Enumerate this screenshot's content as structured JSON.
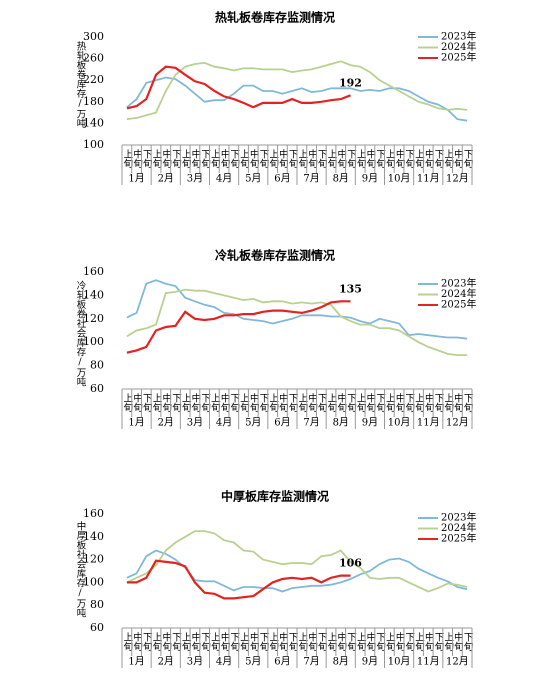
{
  "chart_data": [
    {
      "type": "line",
      "title": "热轧板卷库存监测情况",
      "y_label": "热轧板卷库存/万吨",
      "categories": [
        "上旬",
        "中旬",
        "下旬",
        "上旬",
        "中旬",
        "下旬",
        "上旬",
        "中旬",
        "下旬",
        "上旬",
        "中旬",
        "下旬",
        "上旬",
        "中旬",
        "下旬",
        "上旬",
        "中旬",
        "下旬",
        "上旬",
        "中旬",
        "下旬",
        "上旬",
        "中旬",
        "下旬",
        "上旬",
        "中旬",
        "下旬",
        "上旬",
        "中旬",
        "下旬",
        "上旬",
        "中旬",
        "下旬",
        "上旬",
        "中旬",
        "下旬"
      ],
      "months": [
        "1月",
        "2月",
        "3月",
        "4月",
        "5月",
        "6月",
        "7月",
        "8月",
        "9月",
        "10月",
        "11月",
        "12月"
      ],
      "ylim": [
        100,
        300
      ],
      "yticks": [
        100,
        140,
        180,
        220,
        260,
        300
      ],
      "series": [
        {
          "name": "2023年",
          "color": "#80b9d8",
          "values": [
            170,
            185,
            215,
            220,
            225,
            222,
            210,
            195,
            180,
            183,
            183,
            195,
            210,
            210,
            200,
            200,
            195,
            200,
            205,
            198,
            200,
            205,
            205,
            205,
            200,
            202,
            200,
            205,
            205,
            200,
            190,
            180,
            175,
            165,
            148,
            145
          ]
        },
        {
          "name": "2024年",
          "color": "#b8d190",
          "values": [
            148,
            150,
            155,
            160,
            200,
            230,
            245,
            250,
            252,
            245,
            242,
            238,
            242,
            242,
            240,
            240,
            240,
            235,
            238,
            240,
            245,
            250,
            255,
            248,
            245,
            235,
            220,
            210,
            200,
            190,
            180,
            175,
            168,
            165,
            167,
            165
          ]
        },
        {
          "name": "2025年",
          "color": "#e52222",
          "data_label": "last",
          "values": [
            168,
            172,
            185,
            230,
            245,
            243,
            230,
            218,
            213,
            200,
            190,
            185,
            178,
            170,
            178,
            178,
            178,
            185,
            178,
            178,
            180,
            183,
            185,
            192,
            null,
            null,
            null,
            null,
            null,
            null,
            null,
            null,
            null,
            null,
            null,
            null
          ]
        }
      ]
    },
    {
      "type": "line",
      "title": "冷轧板卷库存监测情况",
      "y_label": "冷轧板卷社会库存/万吨",
      "categories": [
        "上旬",
        "中旬",
        "下旬",
        "上旬",
        "中旬",
        "下旬",
        "上旬",
        "中旬",
        "下旬",
        "上旬",
        "中旬",
        "下旬",
        "上旬",
        "中旬",
        "下旬",
        "上旬",
        "中旬",
        "下旬",
        "上旬",
        "中旬",
        "下旬",
        "上旬",
        "中旬",
        "下旬",
        "上旬",
        "中旬",
        "下旬",
        "上旬",
        "中旬",
        "下旬",
        "上旬",
        "中旬",
        "下旬",
        "上旬",
        "中旬",
        "下旬"
      ],
      "months": [
        "1月",
        "2月",
        "3月",
        "4月",
        "5月",
        "6月",
        "7月",
        "8月",
        "9月",
        "10月",
        "11月",
        "12月"
      ],
      "ylim": [
        60,
        160
      ],
      "yticks": [
        60,
        80,
        100,
        120,
        140,
        160
      ],
      "series": [
        {
          "name": "2023年",
          "color": "#80b9d8",
          "values": [
            121,
            125,
            150,
            153,
            150,
            148,
            138,
            135,
            132,
            130,
            125,
            124,
            120,
            119,
            118,
            116,
            118,
            120,
            123,
            123,
            123,
            122,
            122,
            121,
            118,
            116,
            120,
            118,
            116,
            106,
            107,
            106,
            105,
            104,
            104,
            103
          ]
        },
        {
          "name": "2024年",
          "color": "#b8d190",
          "values": [
            105,
            110,
            112,
            115,
            142,
            143,
            145,
            144,
            144,
            142,
            140,
            138,
            136,
            137,
            134,
            135,
            135,
            133,
            134,
            133,
            134,
            132,
            122,
            118,
            115,
            115,
            112,
            112,
            110,
            105,
            100,
            96,
            93,
            90,
            89,
            89
          ]
        },
        {
          "name": "2025年",
          "color": "#e52222",
          "data_label": "last",
          "values": [
            91,
            93,
            96,
            110,
            113,
            114,
            126,
            120,
            119,
            120,
            123,
            123,
            124,
            124,
            126,
            127,
            127,
            126,
            125,
            127,
            130,
            134,
            135,
            135,
            null,
            null,
            null,
            null,
            null,
            null,
            null,
            null,
            null,
            null,
            null,
            null
          ]
        }
      ]
    },
    {
      "type": "line",
      "title": "中厚板库存监测情况",
      "y_label": "中厚板社会库存/万吨",
      "categories": [
        "上旬",
        "中旬",
        "下旬",
        "上旬",
        "中旬",
        "下旬",
        "上旬",
        "中旬",
        "下旬",
        "上旬",
        "中旬",
        "下旬",
        "上旬",
        "中旬",
        "下旬",
        "上旬",
        "中旬",
        "下旬",
        "上旬",
        "中旬",
        "下旬",
        "上旬",
        "中旬",
        "下旬",
        "上旬",
        "中旬",
        "下旬",
        "上旬",
        "中旬",
        "下旬",
        "上旬",
        "中旬",
        "下旬",
        "上旬",
        "中旬",
        "下旬"
      ],
      "months": [
        "1月",
        "2月",
        "3月",
        "4月",
        "5月",
        "6月",
        "7月",
        "8月",
        "9月",
        "10月",
        "11月",
        "12月"
      ],
      "ylim": [
        60,
        160
      ],
      "yticks": [
        60,
        80,
        100,
        120,
        140,
        160
      ],
      "series": [
        {
          "name": "2023年",
          "color": "#80b9d8",
          "values": [
            104,
            108,
            123,
            128,
            125,
            120,
            113,
            102,
            101,
            101,
            97,
            93,
            96,
            96,
            95,
            95,
            92,
            95,
            96,
            97,
            97,
            98,
            100,
            103,
            107,
            110,
            116,
            120,
            121,
            118,
            112,
            108,
            104,
            101,
            96,
            94
          ]
        },
        {
          "name": "2024年",
          "color": "#b8d190",
          "values": [
            100,
            104,
            108,
            115,
            128,
            135,
            140,
            145,
            145,
            143,
            137,
            135,
            128,
            127,
            120,
            118,
            116,
            117,
            117,
            116,
            123,
            124,
            128,
            118,
            113,
            104,
            103,
            104,
            104,
            100,
            96,
            92,
            95,
            99,
            98,
            96
          ]
        },
        {
          "name": "2025年",
          "color": "#e52222",
          "data_label": "last",
          "values": [
            100,
            100,
            104,
            119,
            118,
            117,
            114,
            100,
            91,
            90,
            86,
            86,
            87,
            88,
            94,
            100,
            103,
            104,
            103,
            104,
            100,
            104,
            106,
            106,
            null,
            null,
            null,
            null,
            null,
            null,
            null,
            null,
            null,
            null,
            null,
            null
          ]
        }
      ]
    }
  ]
}
